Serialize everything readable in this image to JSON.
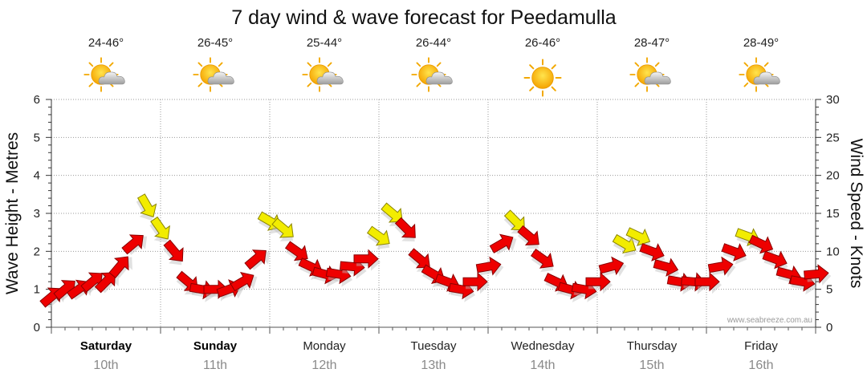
{
  "chart_data": {
    "type": "line",
    "title": "7 day wind & wave forecast for Peedamulla",
    "ylabel_left": "Wave Height - Metres",
    "ylabel_right": "Wind Speed - Knots",
    "ylim_left": [
      0,
      6
    ],
    "ylim_right": [
      0,
      30
    ],
    "yticks_left": [
      "0",
      "1",
      "2",
      "3",
      "4",
      "5",
      "6"
    ],
    "yticks_right": [
      "0",
      "5",
      "10",
      "15",
      "20",
      "25",
      "30"
    ],
    "credit": "www.seabreeze.com.au",
    "days": [
      {
        "name": "Saturday",
        "date": "10th",
        "temp": "24-46°",
        "icon": "partly-cloudy-icon",
        "bold": true
      },
      {
        "name": "Sunday",
        "date": "11th",
        "temp": "26-45°",
        "icon": "partly-cloudy-icon",
        "bold": true
      },
      {
        "name": "Monday",
        "date": "12th",
        "temp": "25-44°",
        "icon": "partly-cloudy-icon",
        "bold": false
      },
      {
        "name": "Tuesday",
        "date": "13th",
        "temp": "26-44°",
        "icon": "partly-cloudy-icon",
        "bold": false
      },
      {
        "name": "Wednesday",
        "date": "14th",
        "temp": "26-46°",
        "icon": "sunny-icon",
        "bold": false
      },
      {
        "name": "Thursday",
        "date": "15th",
        "temp": "28-47°",
        "icon": "partly-cloudy-icon",
        "bold": false
      },
      {
        "name": "Friday",
        "date": "16th",
        "temp": "28-49°",
        "icon": "partly-cloudy-icon",
        "bold": false
      }
    ],
    "series": [
      {
        "name": "Wind Speed (knots)",
        "axis": "right",
        "x_hours": [
          0,
          3,
          6,
          9,
          12,
          15,
          18,
          21,
          24,
          27,
          30,
          33,
          36,
          39,
          42,
          45,
          48,
          51,
          54,
          57,
          60,
          63,
          66,
          69,
          72,
          75,
          78,
          81,
          84,
          87,
          90,
          93,
          96,
          99,
          102,
          105,
          108,
          111,
          114,
          117,
          120,
          123,
          126,
          129,
          132,
          135,
          138,
          141,
          144,
          147,
          150,
          153,
          156,
          159,
          162,
          165,
          168
        ],
        "values": [
          4,
          5,
          5,
          6,
          6,
          8,
          11,
          16,
          13,
          10,
          6,
          5,
          5,
          5,
          6,
          9,
          14,
          13,
          10,
          8,
          7,
          7,
          8,
          9,
          12,
          15,
          13,
          9,
          7,
          6,
          5,
          6,
          8,
          11,
          14,
          12,
          9,
          6,
          5,
          5,
          6,
          8,
          11,
          12,
          10,
          8,
          6,
          6,
          6,
          8,
          10,
          12,
          11,
          9,
          7,
          6,
          7
        ],
        "arrow_angles_deg": [
          -40,
          -40,
          -35,
          -40,
          -45,
          -50,
          -40,
          60,
          55,
          50,
          40,
          10,
          0,
          -20,
          -30,
          -40,
          30,
          40,
          35,
          25,
          15,
          10,
          5,
          0,
          35,
          40,
          45,
          40,
          30,
          20,
          10,
          0,
          -10,
          -30,
          45,
          40,
          35,
          25,
          15,
          10,
          0,
          -15,
          30,
          25,
          20,
          15,
          10,
          5,
          0,
          -10,
          20,
          20,
          25,
          20,
          15,
          10,
          -5
        ],
        "colors": [
          "#ee0000",
          "#ee0000",
          "#ee0000",
          "#ee0000",
          "#ee0000",
          "#ee0000",
          "#ee0000",
          "#f2ec00",
          "#f2ec00",
          "#ee0000",
          "#ee0000",
          "#ee0000",
          "#ee0000",
          "#ee0000",
          "#ee0000",
          "#ee0000",
          "#f2ec00",
          "#f2ec00",
          "#ee0000",
          "#ee0000",
          "#ee0000",
          "#ee0000",
          "#ee0000",
          "#ee0000",
          "#f2ec00",
          "#f2ec00",
          "#ee0000",
          "#ee0000",
          "#ee0000",
          "#ee0000",
          "#ee0000",
          "#ee0000",
          "#ee0000",
          "#ee0000",
          "#f2ec00",
          "#ee0000",
          "#ee0000",
          "#ee0000",
          "#ee0000",
          "#ee0000",
          "#ee0000",
          "#ee0000",
          "#f2ec00",
          "#f2ec00",
          "#ee0000",
          "#ee0000",
          "#ee0000",
          "#ee0000",
          "#ee0000",
          "#ee0000",
          "#ee0000",
          "#f2ec00",
          "#ee0000",
          "#ee0000",
          "#ee0000",
          "#ee0000",
          "#ee0000"
        ]
      }
    ]
  }
}
